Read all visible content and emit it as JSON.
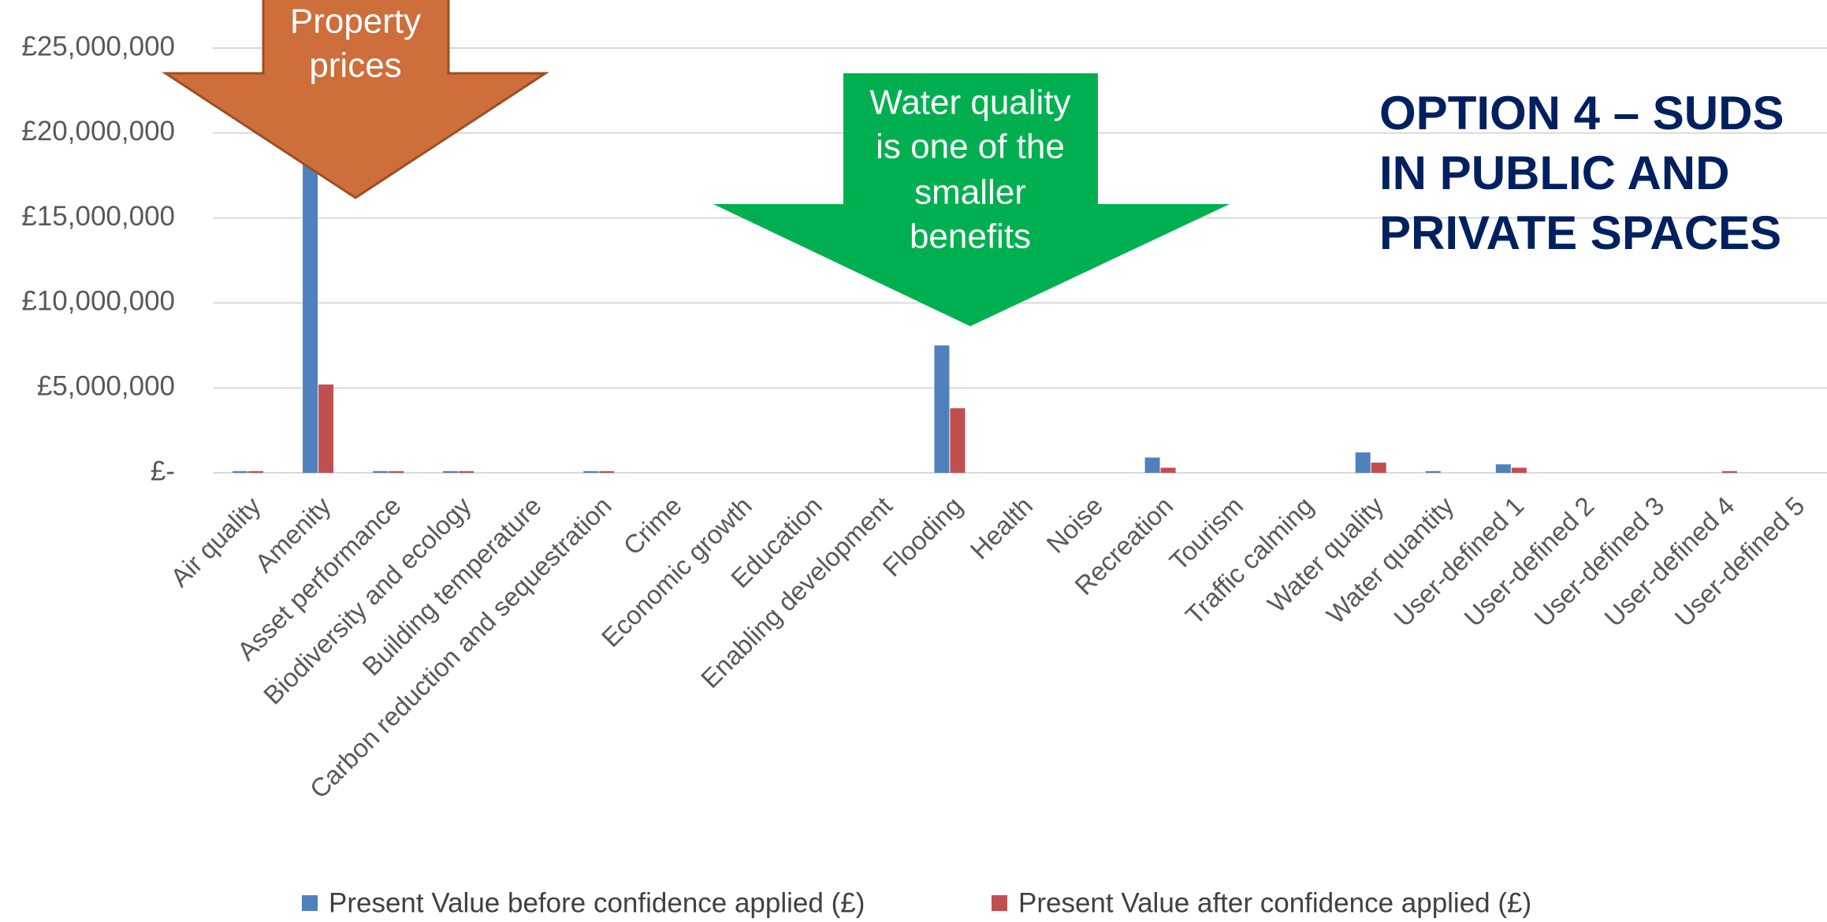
{
  "chart_data": {
    "type": "bar",
    "categories": [
      "Air quality",
      "Amenity",
      "Asset performance",
      "Biodiversity and ecology",
      "Building temperature",
      "Carbon reduction and sequestration",
      "Crime",
      "Economic growth",
      "Education",
      "Enabling development",
      "Flooding",
      "Health",
      "Noise",
      "Recreation",
      "Tourism",
      "Traffic calming",
      "Water quality",
      "Water quantity",
      "User-defined 1",
      "User-defined 2",
      "User-defined 3",
      "User-defined 4",
      "User-defined 5"
    ],
    "series": [
      {
        "name": "Present Value before confidence applied (£)",
        "color": "#4f81bd",
        "values": [
          100000,
          21000000,
          100000,
          100000,
          0,
          100000,
          0,
          0,
          0,
          0,
          7500000,
          0,
          0,
          900000,
          0,
          0,
          1200000,
          100000,
          500000,
          0,
          0,
          0,
          0
        ]
      },
      {
        "name": "Present Value after confidence applied (£)",
        "color": "#c0504d",
        "values": [
          100000,
          5200000,
          100000,
          100000,
          0,
          100000,
          0,
          0,
          0,
          0,
          3800000,
          0,
          0,
          300000,
          0,
          0,
          600000,
          0,
          300000,
          0,
          0,
          100000,
          0
        ]
      }
    ],
    "ylim": [
      0,
      25000000
    ],
    "yticks": [
      {
        "value": 0,
        "label": "£-"
      },
      {
        "value": 5000000,
        "label": "£5,000,000"
      },
      {
        "value": 10000000,
        "label": "£10,000,000"
      },
      {
        "value": 15000000,
        "label": "£15,000,000"
      },
      {
        "value": 20000000,
        "label": "£20,000,000"
      },
      {
        "value": 25000000,
        "label": "£25,000,000"
      }
    ],
    "grid": true,
    "legend": "bottom",
    "annotations": [
      {
        "lines": [
          "Property",
          "prices"
        ],
        "color": "#cd6e3b"
      },
      {
        "lines": [
          "Water quality",
          "is one of the",
          "smaller",
          "benefits"
        ],
        "color": "#00b050"
      }
    ],
    "heading": [
      "OPTION 4 – SUDS",
      "IN PUBLIC AND",
      "PRIVATE SPACES"
    ]
  }
}
